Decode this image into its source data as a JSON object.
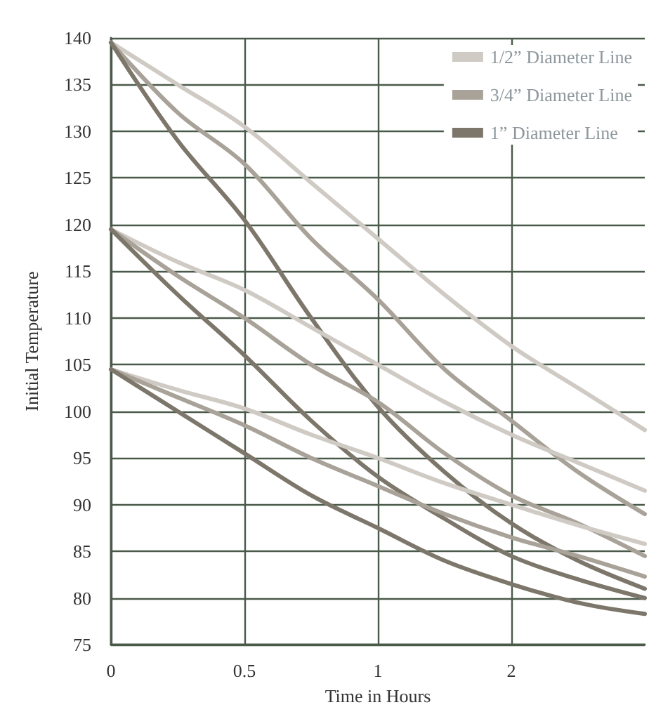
{
  "chart_data": {
    "type": "line",
    "xlabel": "Time in Hours",
    "ylabel": "Initial Temperature",
    "categories": [
      "0",
      null,
      "0.5",
      null,
      "1",
      null,
      "2",
      null,
      null
    ],
    "series": [
      {
        "name": "1/2” Diameter Line",
        "color": "#cfcbc4",
        "values": [
          139.5,
          135,
          130.5,
          124.5,
          118.5,
          112.5,
          107,
          102.5,
          98
        ]
      },
      {
        "name": "3/4” Diameter Line",
        "color": "#a8a298",
        "values": [
          139.5,
          132,
          126.5,
          118.5,
          112,
          104.5,
          99,
          93.5,
          89
        ]
      },
      {
        "name": "1” Diameter Line",
        "color": "#7d776b",
        "values": [
          139.5,
          129,
          120.5,
          110,
          100.5,
          93.5,
          88,
          84,
          81
        ]
      },
      {
        "color": "#cfcbc4",
        "values": [
          119.5,
          116,
          113,
          109,
          105,
          101,
          97.5,
          94.5,
          91.5
        ]
      },
      {
        "color": "#a8a298",
        "values": [
          119.5,
          114.5,
          110,
          105,
          101,
          95.5,
          91,
          88,
          84.5
        ]
      },
      {
        "color": "#7d776b",
        "values": [
          119.5,
          112.5,
          106,
          99,
          93,
          88.5,
          84.5,
          82,
          80
        ]
      },
      {
        "color": "#cfcbc4",
        "values": [
          104.5,
          102.3,
          100.3,
          97.5,
          95,
          92.3,
          90,
          87.8,
          85.8
        ]
      },
      {
        "color": "#a8a298",
        "values": [
          104.5,
          101.5,
          98.5,
          95,
          92,
          89,
          86.5,
          84.5,
          82.3
        ]
      },
      {
        "color": "#7d776b",
        "values": [
          104.5,
          100,
          95.5,
          91,
          87.5,
          84,
          81.5,
          79.5,
          78.3
        ]
      }
    ],
    "ylim": [
      75,
      140
    ],
    "yticks": [
      75,
      80,
      85,
      90,
      95,
      100,
      105,
      110,
      115,
      120,
      125,
      130,
      135,
      140
    ],
    "grid": true,
    "legend": "top right",
    "marker": "none",
    "line_style": "solid"
  }
}
